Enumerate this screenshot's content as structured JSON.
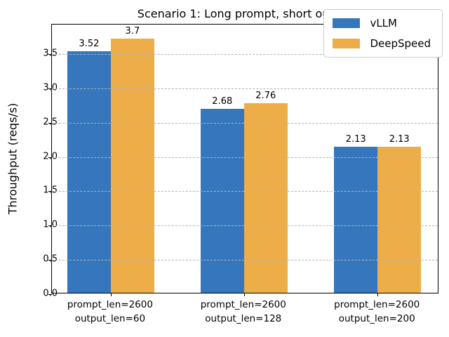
{
  "figure": {
    "background": "#ffffff"
  },
  "chart_data": {
    "type": "bar",
    "title": "Scenario 1: Long prompt, short output",
    "xlabel": "",
    "ylabel": "Throughput (reqs/s)",
    "categories": [
      "prompt_len=2600\noutput_len=60",
      "prompt_len=2600\noutput_len=128",
      "prompt_len=2600\noutput_len=200"
    ],
    "series": [
      {
        "name": "vLLM",
        "color": "#3576BC",
        "values": [
          3.52,
          2.68,
          2.13
        ],
        "bar_labels": [
          "3.52",
          "2.68",
          "2.13"
        ]
      },
      {
        "name": "DeepSpeed",
        "color": "#EDAD49",
        "values": [
          3.7,
          2.76,
          2.13
        ],
        "bar_labels": [
          "3.7",
          "2.76",
          "2.13"
        ]
      }
    ],
    "ylim": [
      0,
      3.93
    ],
    "yticks": [
      "0.0",
      "0.5",
      "1.0",
      "1.5",
      "2.0",
      "2.5",
      "3.0",
      "3.5"
    ],
    "grid": {
      "axis": "y",
      "style": "dashed",
      "color": "#b4b4b4",
      "drawn_over_bars": true
    },
    "legend": {
      "position": "upper right",
      "entries": [
        "vLLM",
        "DeepSpeed"
      ]
    }
  }
}
